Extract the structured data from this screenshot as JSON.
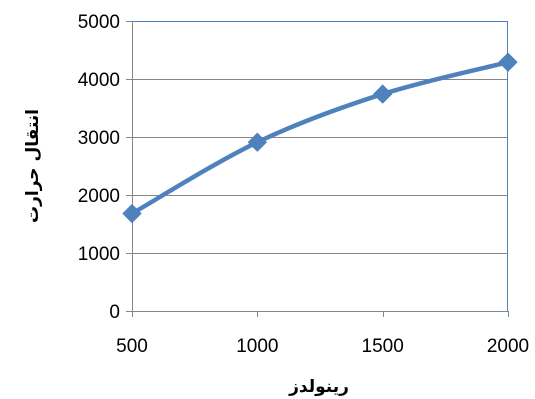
{
  "chart_data": {
    "type": "line",
    "title": "",
    "xlabel": "رینولدز",
    "ylabel": "انتقال حرارت",
    "x": [
      500,
      1000,
      1500,
      2000
    ],
    "series": [
      {
        "name": "",
        "values": [
          1680,
          2910,
          3740,
          4290
        ],
        "color": "#4F81BD",
        "marker": "diamond",
        "smooth": true
      }
    ],
    "xlim": [
      500,
      2000
    ],
    "ylim": [
      0,
      5000
    ],
    "xticks": [
      500,
      1000,
      1500,
      2000
    ],
    "yticks": [
      0,
      1000,
      2000,
      3000,
      4000,
      5000
    ],
    "grid": "horizontal",
    "legend": "none",
    "plot_border_color": "#4F81BD",
    "grid_color": "#868686"
  }
}
